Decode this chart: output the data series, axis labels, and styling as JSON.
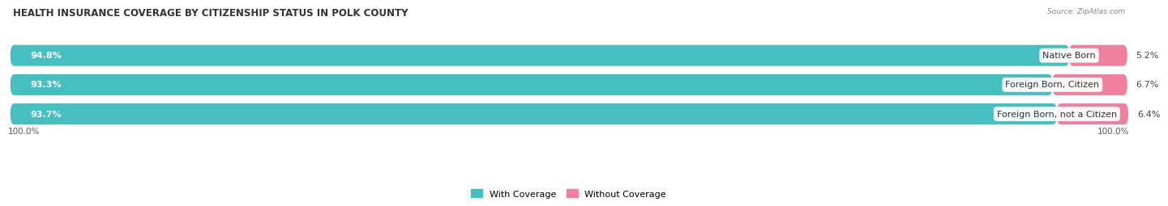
{
  "title": "HEALTH INSURANCE COVERAGE BY CITIZENSHIP STATUS IN POLK COUNTY",
  "source": "Source: ZipAtlas.com",
  "categories": [
    "Native Born",
    "Foreign Born, Citizen",
    "Foreign Born, not a Citizen"
  ],
  "with_coverage": [
    94.8,
    93.3,
    93.7
  ],
  "without_coverage": [
    5.2,
    6.7,
    6.4
  ],
  "color_with": "#45bfbf",
  "color_without": "#f080a0",
  "color_bg_row": "#eeeeee",
  "title_fontsize": 8.5,
  "label_fontsize": 8.0,
  "bar_label_fontsize": 8.0,
  "pct_fontsize": 8.0,
  "x_left_label": "100.0%",
  "x_right_label": "100.0%"
}
